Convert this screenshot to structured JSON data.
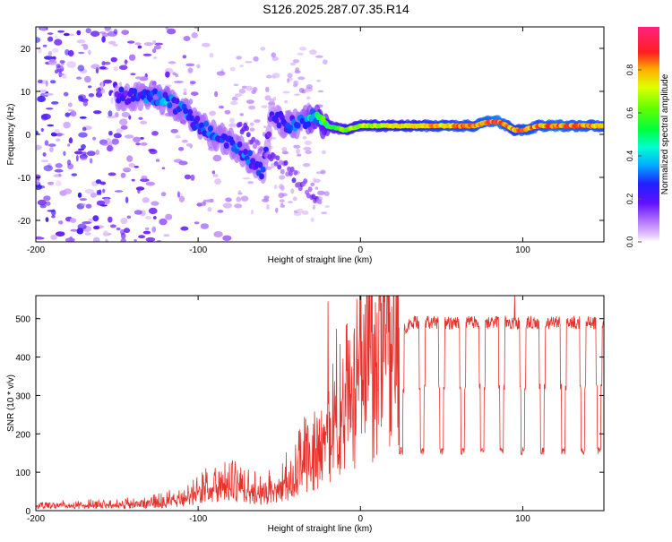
{
  "title": "S126.2025.287.07.35.R14",
  "chart_data": [
    {
      "type": "heatmap",
      "panel": "top",
      "xlabel": "Height of straight line (km)",
      "ylabel": "Frequency (Hz)",
      "xlim": [
        -200,
        150
      ],
      "ylim": [
        -25,
        25
      ],
      "xticks": [
        -200,
        -100,
        0,
        100
      ],
      "yticks": [
        20,
        10,
        0,
        -10,
        -20
      ],
      "colorbar": {
        "label": "Normalized spectral amplitude",
        "range": [
          0,
          1
        ],
        "ticks": [
          0.0,
          0.2,
          0.4,
          0.6,
          0.8
        ]
      },
      "ridge": {
        "description_points_x": [
          -150,
          -130,
          -120,
          -110,
          -100,
          -90,
          -80,
          -70,
          -60,
          -55,
          -45,
          -35,
          -30,
          -20,
          -10,
          0,
          20,
          40,
          60,
          70,
          80,
          85,
          90,
          95,
          100,
          110,
          120,
          150
        ],
        "frequency_hz": [
          9,
          9,
          8,
          6,
          2,
          0,
          -2,
          -5,
          -9,
          5,
          2,
          3,
          4,
          2,
          1,
          2,
          2,
          2,
          2,
          2,
          3,
          3,
          2,
          1,
          1,
          2,
          2,
          2
        ],
        "amplitude": [
          0.25,
          0.3,
          0.35,
          0.3,
          0.3,
          0.3,
          0.3,
          0.3,
          0.25,
          0.2,
          0.3,
          0.3,
          0.45,
          0.55,
          0.65,
          0.7,
          0.75,
          0.8,
          0.85,
          0.85,
          0.9,
          0.95,
          0.85,
          0.8,
          0.85,
          0.85,
          0.9,
          0.85
        ]
      }
    },
    {
      "type": "line",
      "panel": "bottom",
      "xlabel": "Height of straight line (km)",
      "ylabel": "SNR (10 * v/v)",
      "xlim": [
        -200,
        150
      ],
      "ylim": [
        0,
        560
      ],
      "xticks": [
        -200,
        -100,
        0,
        100
      ],
      "yticks": [
        0,
        100,
        200,
        300,
        400,
        500
      ],
      "color": "#e8302a",
      "envelope": {
        "x": [
          -200,
          -150,
          -120,
          -110,
          -100,
          -85,
          -70,
          -60,
          -45,
          -30,
          -20,
          -10,
          0,
          10,
          20,
          25,
          30,
          150
        ],
        "y": [
          10,
          12,
          18,
          25,
          40,
          60,
          45,
          35,
          60,
          120,
          160,
          220,
          270,
          330,
          400,
          460,
          490,
          490
        ]
      },
      "dips": {
        "x": [
          25,
          38,
          50,
          63,
          75,
          87,
          100,
          112,
          125,
          137,
          147
        ],
        "y": [
          155,
          155,
          155,
          155,
          155,
          155,
          155,
          155,
          155,
          155,
          155
        ]
      },
      "spikes": {
        "x": [
          -20,
          95
        ],
        "y": [
          545,
          560
        ]
      }
    }
  ]
}
